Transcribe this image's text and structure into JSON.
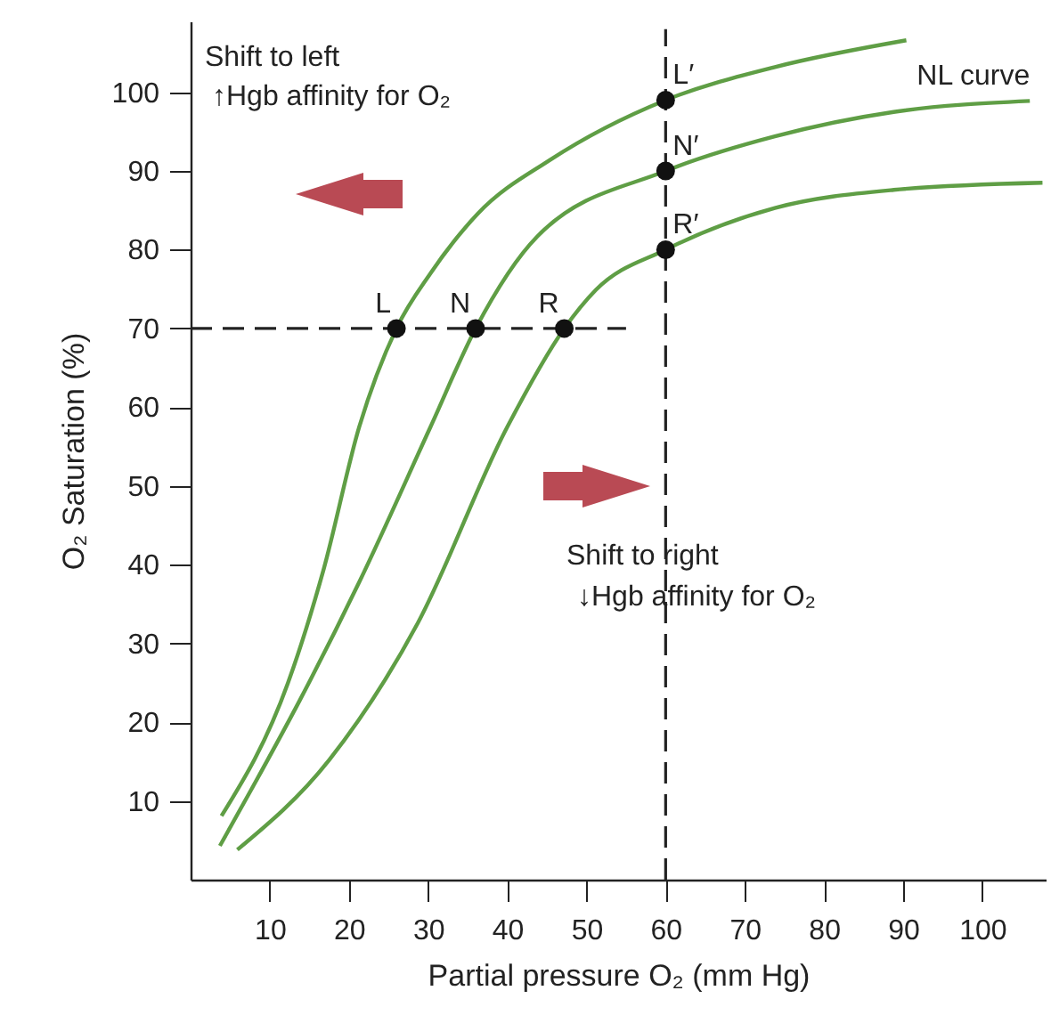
{
  "chart_data": {
    "type": "line",
    "xlabel": "Partial pressure O₂ (mm Hg)",
    "ylabel": "O₂ Saturation (%)",
    "xlim": [
      0,
      108
    ],
    "ylim": [
      0,
      109
    ],
    "xticks": [
      10,
      20,
      30,
      40,
      50,
      60,
      70,
      80,
      90,
      100
    ],
    "yticks": [
      10,
      20,
      30,
      40,
      50,
      60,
      70,
      80,
      90,
      100
    ],
    "marker": "none",
    "line_style": "solid",
    "grid": false,
    "series": [
      {
        "color": "#5f9e45",
        "x": [
          3.9,
          12.3,
          16.8,
          21.3,
          26,
          30.3,
          36.3,
          45.4,
          60,
          73.8,
          90.4
        ],
        "values": [
          8.1,
          25,
          39.4,
          57.5,
          70,
          77,
          84.6,
          91.4,
          99,
          103.2,
          106.6
        ]
      },
      {
        "name": "NL curve",
        "color": "#5f9e45",
        "x": [
          3.7,
          7.7,
          13.8,
          21.3,
          30.3,
          36,
          43.8,
          60,
          73.8,
          88.8,
          106
        ],
        "values": [
          4.3,
          11.5,
          22.8,
          37.8,
          57.5,
          70,
          81.7,
          90,
          94.4,
          97.5,
          98.9
        ]
      },
      {
        "color": "#5f9e45",
        "x": [
          5.9,
          17.5,
          28.7,
          40,
          47.2,
          51.2,
          60,
          73.8,
          88.8,
          107.6
        ],
        "values": [
          3.8,
          15.2,
          32.6,
          57.5,
          70,
          74.9,
          80,
          85.3,
          87.6,
          88.5
        ]
      },
      {
        "type": "line",
        "color": "#222222",
        "line_style": "dashed",
        "x": [
          0,
          55
        ],
        "values": [
          70,
          70
        ]
      },
      {
        "type": "line",
        "color": "#222222",
        "line_style": "dashed",
        "x": [
          60,
          60
        ],
        "values": [
          0,
          108
        ]
      },
      {
        "type": "scatter",
        "marker": "circle",
        "color": "#111111",
        "x": [
          26,
          36,
          47.2,
          60,
          60,
          60
        ],
        "values": [
          70,
          70,
          70,
          99,
          90,
          80
        ]
      }
    ],
    "annotations": [
      "Shift to left",
      "↑Hgb affinity for O₂",
      "Shift to right",
      "↓Hgb affinity for O₂",
      {
        "text": "L",
        "x": 26,
        "y": 70
      },
      {
        "text": "N",
        "x": 36,
        "y": 70
      },
      {
        "text": "R",
        "x": 47.2,
        "y": 70
      },
      {
        "text": "L′",
        "x": 60,
        "y": 99
      },
      {
        "text": "N′",
        "x": 60,
        "y": 90
      },
      {
        "text": "R′",
        "x": 60,
        "y": 80
      }
    ]
  }
}
